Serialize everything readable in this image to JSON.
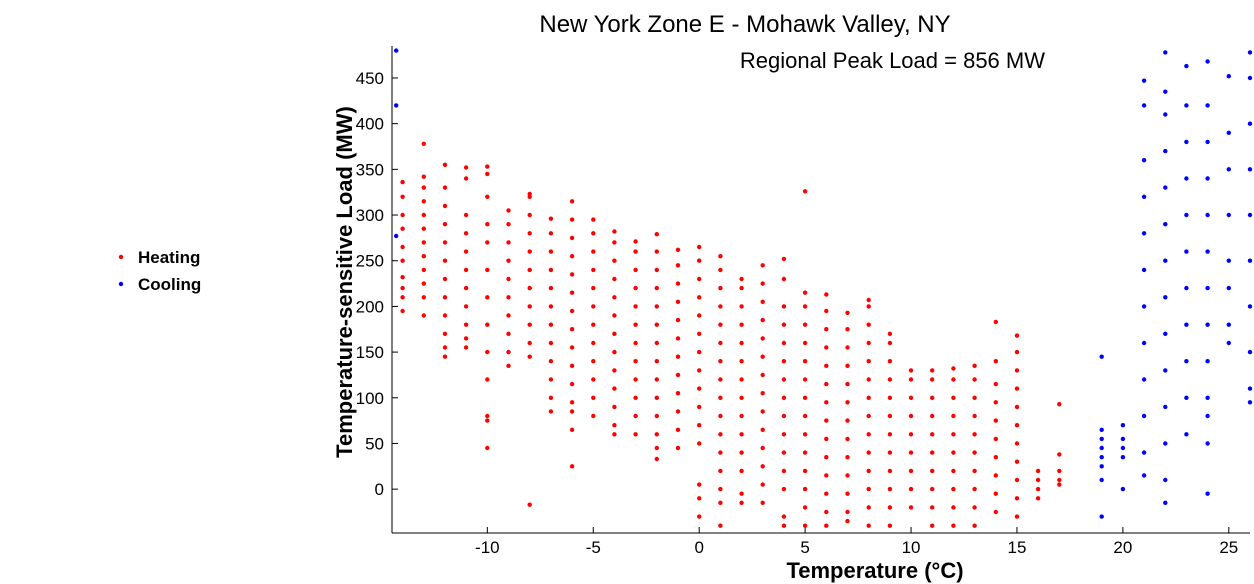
{
  "chart_data": {
    "type": "scatter",
    "title": "New York Zone E - Mohawk Valley, NY",
    "annotation": "Regional Peak Load = 856 MW",
    "xlabel": "Temperature (°C)",
    "ylabel": "Temperature-sensitive Load (MW)",
    "xlim": [
      -14.5,
      26
    ],
    "ylim": [
      -48,
      485
    ],
    "x_ticks": [
      -10,
      -5,
      0,
      5,
      10,
      15,
      20,
      25
    ],
    "y_ticks": [
      0,
      50,
      100,
      150,
      200,
      250,
      300,
      350,
      400,
      450
    ],
    "grid": false,
    "legend_position": "left",
    "colors": {
      "heating": "#ff0000",
      "cooling": "#0000ff"
    },
    "series": [
      {
        "name": "Heating",
        "color": "#ff0000",
        "columns": [
          {
            "x": -14,
            "values": [
              336,
              320,
              300,
              285,
              265,
              250,
              232,
              220,
              210,
              195
            ]
          },
          {
            "x": -13,
            "values": [
              378,
              342,
              330,
              315,
              300,
              285,
              270,
              255,
              240,
              225,
              210,
              190
            ]
          },
          {
            "x": -12,
            "values": [
              355,
              330,
              310,
              290,
              270,
              250,
              230,
              210,
              190,
              170,
              155,
              145
            ]
          },
          {
            "x": -11,
            "values": [
              352,
              340,
              300,
              280,
              260,
              240,
              220,
              200,
              180,
              165,
              155
            ]
          },
          {
            "x": -10,
            "values": [
              353,
              345,
              320,
              290,
              270,
              240,
              210,
              180,
              150,
              120,
              80,
              75,
              45
            ]
          },
          {
            "x": -9,
            "values": [
              305,
              290,
              270,
              250,
              230,
              210,
              190,
              170,
              150,
              135
            ]
          },
          {
            "x": -8,
            "values": [
              323,
              320,
              300,
              280,
              260,
              240,
              220,
              200,
              180,
              160,
              145,
              -17
            ]
          },
          {
            "x": -7,
            "values": [
              296,
              280,
              260,
              240,
              220,
              200,
              180,
              160,
              140,
              120,
              100,
              85
            ]
          },
          {
            "x": -6,
            "values": [
              315,
              295,
              275,
              255,
              235,
              215,
              195,
              175,
              155,
              135,
              115,
              95,
              85,
              65,
              25
            ]
          },
          {
            "x": -5,
            "values": [
              295,
              280,
              260,
              240,
              220,
              200,
              180,
              160,
              140,
              120,
              100,
              80
            ]
          },
          {
            "x": -4,
            "values": [
              282,
              270,
              250,
              230,
              210,
              190,
              170,
              150,
              130,
              110,
              90,
              70,
              60
            ]
          },
          {
            "x": -3,
            "values": [
              271,
              260,
              240,
              220,
              200,
              180,
              160,
              140,
              120,
              100,
              80,
              60
            ]
          },
          {
            "x": -2,
            "values": [
              279,
              260,
              240,
              220,
              200,
              180,
              160,
              140,
              120,
              100,
              80,
              60,
              45,
              33
            ]
          },
          {
            "x": -1,
            "values": [
              262,
              245,
              225,
              205,
              185,
              165,
              145,
              125,
              105,
              85,
              65,
              45
            ]
          },
          {
            "x": 0,
            "values": [
              265,
              250,
              230,
              210,
              190,
              170,
              150,
              130,
              110,
              90,
              70,
              50,
              5,
              -10,
              -30
            ]
          },
          {
            "x": 1,
            "values": [
              255,
              240,
              220,
              200,
              180,
              160,
              140,
              120,
              100,
              80,
              60,
              40,
              20,
              0,
              -15,
              -40
            ]
          },
          {
            "x": 2,
            "values": [
              230,
              220,
              200,
              180,
              160,
              140,
              120,
              100,
              80,
              60,
              40,
              20,
              -5,
              -15
            ]
          },
          {
            "x": 3,
            "values": [
              245,
              225,
              205,
              185,
              165,
              145,
              125,
              105,
              85,
              65,
              45,
              25,
              5,
              -15
            ]
          },
          {
            "x": 4,
            "values": [
              252,
              230,
              200,
              180,
              160,
              140,
              120,
              100,
              80,
              60,
              40,
              20,
              0,
              -30,
              -40
            ]
          },
          {
            "x": 5,
            "values": [
              326,
              215,
              200,
              180,
              160,
              140,
              120,
              100,
              80,
              60,
              40,
              20,
              0,
              -20,
              -40
            ]
          },
          {
            "x": 6,
            "values": [
              213,
              195,
              175,
              155,
              135,
              115,
              95,
              75,
              55,
              35,
              15,
              -5,
              -25,
              -40
            ]
          },
          {
            "x": 7,
            "values": [
              193,
              175,
              155,
              135,
              115,
              95,
              75,
              55,
              35,
              15,
              -5,
              -25,
              -35
            ]
          },
          {
            "x": 8,
            "values": [
              207,
              200,
              180,
              160,
              140,
              120,
              100,
              80,
              60,
              40,
              20,
              0,
              -20,
              -40
            ]
          },
          {
            "x": 9,
            "values": [
              170,
              160,
              140,
              120,
              100,
              80,
              60,
              40,
              20,
              0,
              -20,
              -40
            ]
          },
          {
            "x": 10,
            "values": [
              130,
              120,
              100,
              80,
              60,
              40,
              20,
              0,
              -20
            ]
          },
          {
            "x": 11,
            "values": [
              130,
              120,
              100,
              80,
              60,
              40,
              20,
              0,
              -20,
              -40
            ]
          },
          {
            "x": 12,
            "values": [
              132,
              120,
              100,
              80,
              60,
              40,
              20,
              0,
              -20,
              -40
            ]
          },
          {
            "x": 13,
            "values": [
              135,
              120,
              100,
              80,
              60,
              40,
              20,
              0,
              -20,
              -40
            ]
          },
          {
            "x": 14,
            "values": [
              183,
              140,
              115,
              95,
              75,
              55,
              35,
              15,
              -5,
              -25
            ]
          },
          {
            "x": 15,
            "values": [
              168,
              150,
              130,
              110,
              90,
              70,
              50,
              30,
              10,
              -10,
              -30
            ]
          },
          {
            "x": 16,
            "values": [
              20,
              10,
              0,
              -10
            ]
          },
          {
            "x": 17,
            "values": [
              93,
              38,
              20,
              10,
              5
            ]
          }
        ]
      },
      {
        "name": "Cooling",
        "color": "#0000ff",
        "columns": [
          {
            "x": -14.3,
            "values": [
              480,
              420,
              277
            ]
          },
          {
            "x": 19,
            "values": [
              145,
              65,
              55,
              45,
              35,
              25,
              10,
              -30
            ]
          },
          {
            "x": 20,
            "values": [
              70,
              55,
              45,
              35,
              0
            ]
          },
          {
            "x": 21,
            "values": [
              447,
              420,
              360,
              320,
              280,
              240,
              200,
              160,
              120,
              80,
              40,
              15
            ]
          },
          {
            "x": 22,
            "values": [
              478,
              435,
              410,
              370,
              330,
              290,
              250,
              210,
              170,
              130,
              90,
              50,
              10,
              -15
            ]
          },
          {
            "x": 23,
            "values": [
              463,
              420,
              380,
              340,
              300,
              260,
              220,
              180,
              140,
              100,
              60
            ]
          },
          {
            "x": 24,
            "values": [
              468,
              420,
              380,
              340,
              300,
              260,
              220,
              180,
              140,
              100,
              80,
              50,
              -5
            ]
          },
          {
            "x": 25,
            "values": [
              452,
              390,
              350,
              300,
              250,
              220,
              180,
              160
            ]
          },
          {
            "x": 26,
            "values": [
              478,
              450,
              400,
              350,
              300,
              250,
              200,
              150,
              110,
              95
            ]
          }
        ]
      }
    ]
  }
}
